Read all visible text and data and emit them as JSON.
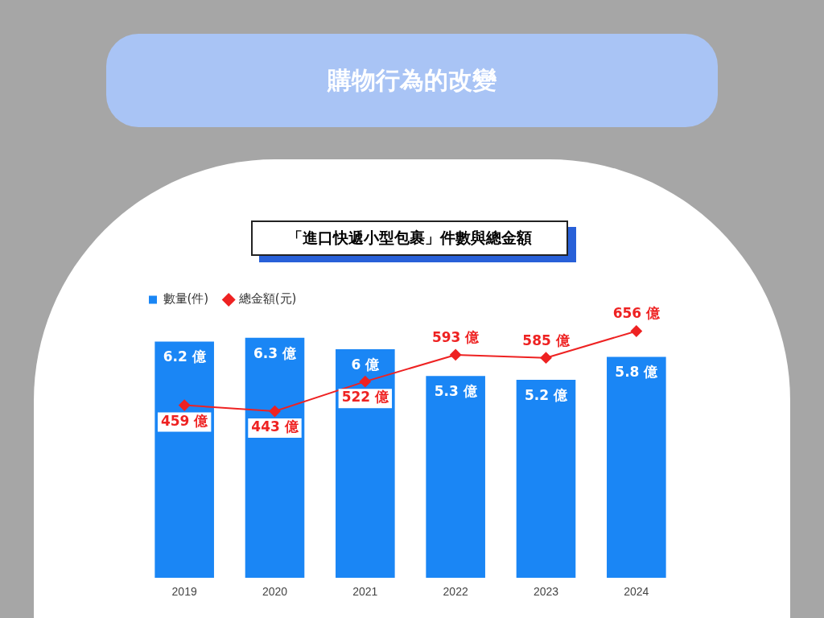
{
  "chart_data": {
    "type": "bar",
    "title": "購物行為的改變",
    "subtitle": "「進口快遞小型包裹」件數與總金額",
    "categories": [
      "2019",
      "2020",
      "2021",
      "2022",
      "2023",
      "2024"
    ],
    "series": [
      {
        "name": "數量(件)",
        "color": "#1a86f5",
        "values": [
          6.2,
          6.3,
          6,
          5.3,
          5.2,
          5.8
        ],
        "value_labels": [
          "6.2 億",
          "6.3 億",
          "6 億",
          "5.3 億",
          "5.2 億",
          "5.8 億"
        ]
      },
      {
        "name": "總金額(元)",
        "type": "line",
        "axis": "y2",
        "color": "#ee2222",
        "marker": "diamond",
        "values": [
          459,
          443,
          522,
          593,
          585,
          656
        ],
        "value_labels": [
          "459 億",
          "443 億",
          "522 億",
          "593 億",
          "585 億",
          "656 億"
        ]
      }
    ],
    "grid": false,
    "legend": "top left",
    "tick_labels": "x",
    "line_style": "solid"
  }
}
